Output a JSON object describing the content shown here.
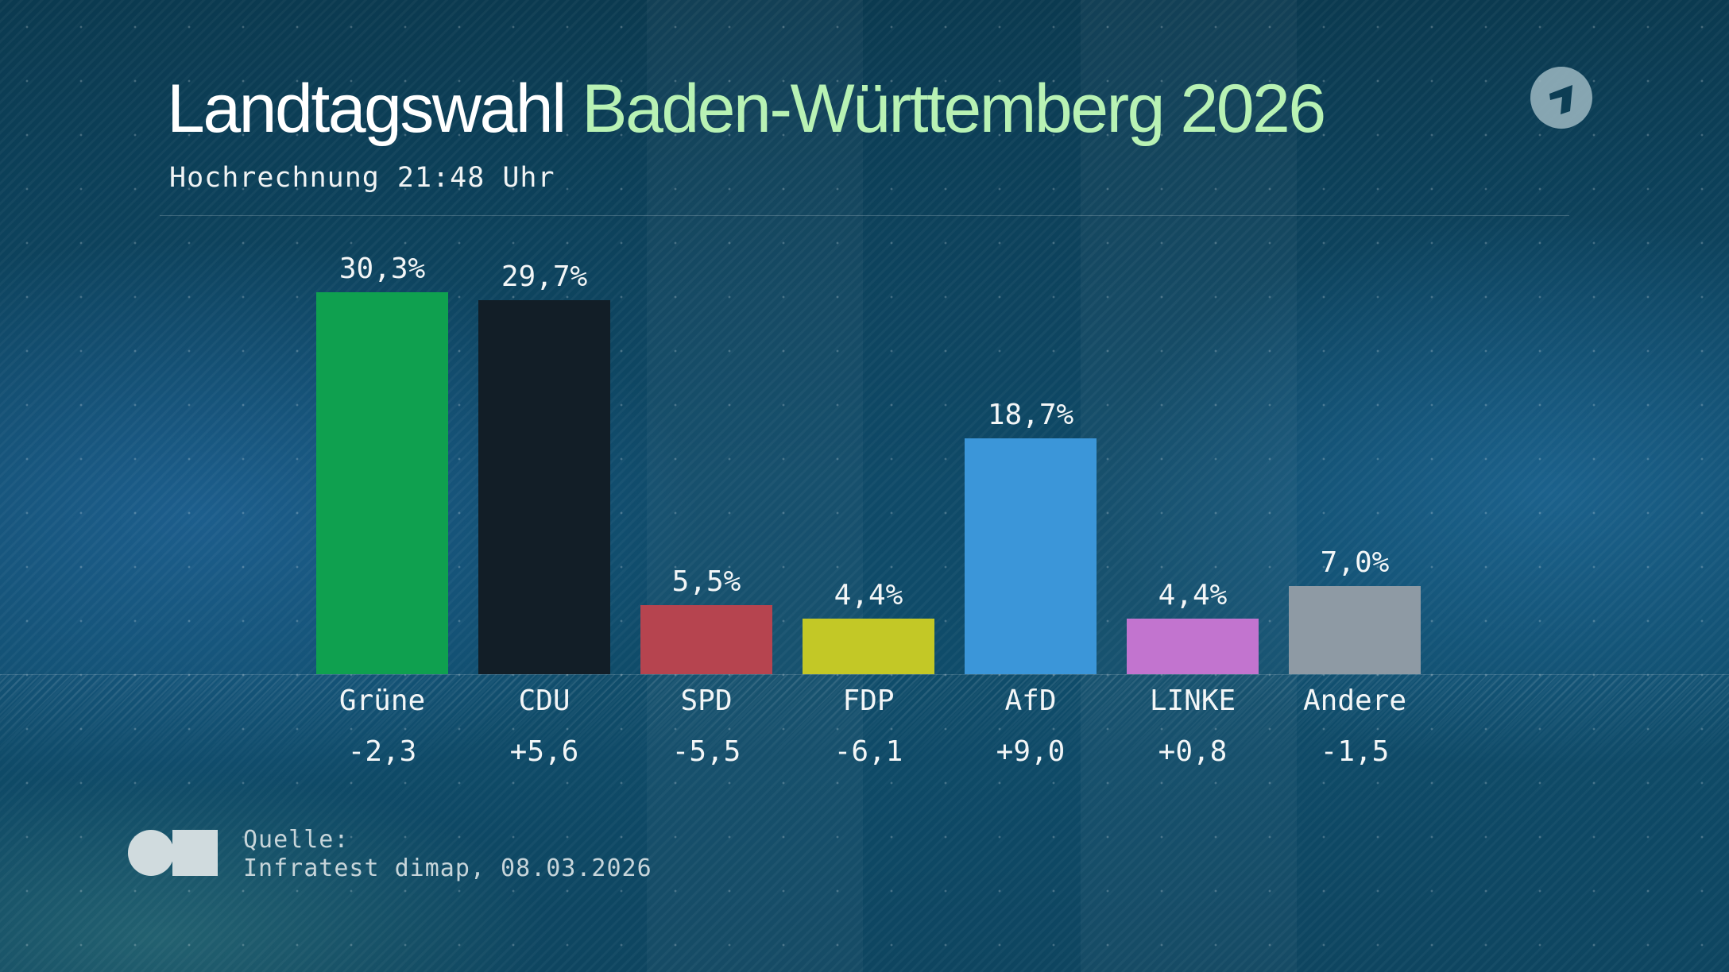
{
  "header": {
    "title_white": "Landtagswahl",
    "title_green": "Baden-Württemberg 2026",
    "subtitle": "Hochrechnung 21:48 Uhr"
  },
  "logo": {
    "icon": "ard-das-erste-logo"
  },
  "chart_data": {
    "type": "bar",
    "title": "Landtagswahl Baden-Württemberg 2026",
    "subtitle": "Hochrechnung 21:48 Uhr",
    "categories": [
      "Grüne",
      "CDU",
      "SPD",
      "FDP",
      "AfD",
      "LINKE",
      "Andere"
    ],
    "values": [
      30.3,
      29.7,
      5.5,
      4.4,
      18.7,
      4.4,
      7.0
    ],
    "value_labels": [
      "30,3%",
      "29,7%",
      "5,5%",
      "4,4%",
      "18,7%",
      "4,4%",
      "7,0%"
    ],
    "changes": [
      "-2,3",
      "+5,6",
      "-5,5",
      "-6,1",
      "+9,0",
      "+0,8",
      "-1,5"
    ],
    "colors": [
      "#0fa04f",
      "#121e27",
      "#b6444f",
      "#c3c826",
      "#3b96d9",
      "#c274cf",
      "#8e9aa4"
    ],
    "unit": "%",
    "ylim": [
      0,
      35
    ],
    "grid": false,
    "legend": "none"
  },
  "source": {
    "label": "Quelle:",
    "text": "Infratest dimap, 08.03.2026"
  }
}
